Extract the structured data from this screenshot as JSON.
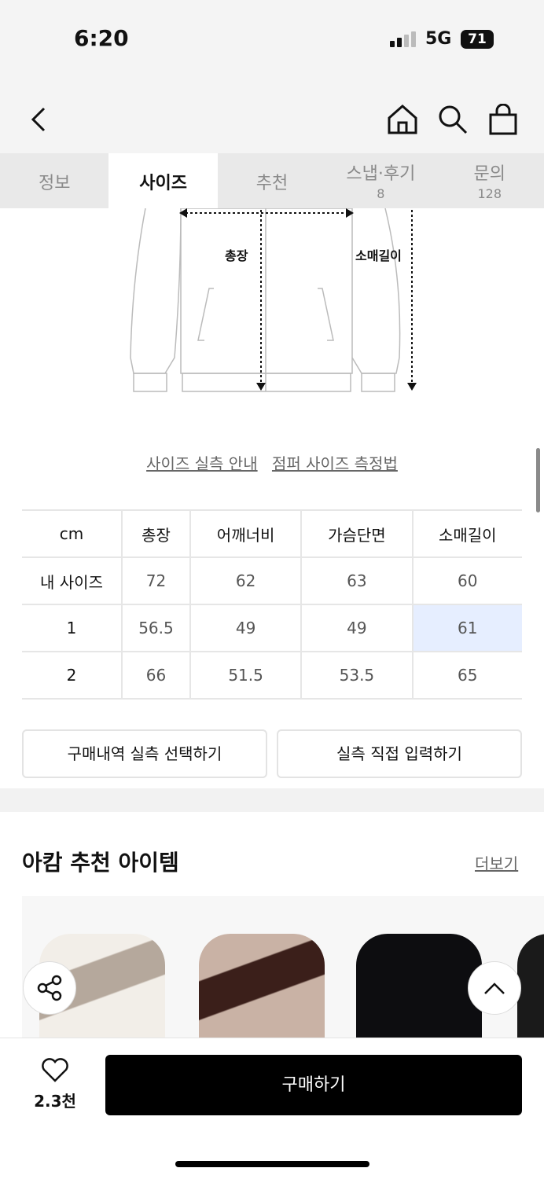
{
  "status_bar": {
    "time": "6:20",
    "network": "5G",
    "battery": "71"
  },
  "nav": {
    "back_icon": "chevron-left-icon",
    "icons": [
      "home-icon",
      "search-icon",
      "shopping-bag-icon"
    ]
  },
  "tabs": [
    {
      "label": "정보"
    },
    {
      "label": "사이즈",
      "active": true
    },
    {
      "label": "추천"
    },
    {
      "label": "스냅·후기",
      "count": "8"
    },
    {
      "label": "문의",
      "count": "128"
    }
  ],
  "diagram": {
    "label_length": "총장",
    "label_sleeve": "소매길이"
  },
  "size_links": [
    "사이즈 실측 안내",
    "점퍼 사이즈 측정법"
  ],
  "size_table": {
    "headers": [
      "cm",
      "총장",
      "어깨너비",
      "가슴단면",
      "소매길이"
    ],
    "rows": [
      [
        "내 사이즈",
        "72",
        "62",
        "63",
        "60"
      ],
      [
        "1",
        "56.5",
        "49",
        "49",
        "61"
      ],
      [
        "2",
        "66",
        "51.5",
        "53.5",
        "65"
      ]
    ],
    "highlight_color": "#e6eeff"
  },
  "buttons": {
    "select_purchase": "구매내역 실측 선택하기",
    "direct_input": "실측 직접 입력하기"
  },
  "recommend": {
    "title": "아캄 추천 아이템",
    "more": "더보기"
  },
  "floating": {
    "share_icon": "share-icon",
    "top_icon": "chevron-up-icon"
  },
  "bottom_bar": {
    "like_icon": "heart-icon",
    "likes": "2.3천",
    "buy": "구매하기"
  }
}
